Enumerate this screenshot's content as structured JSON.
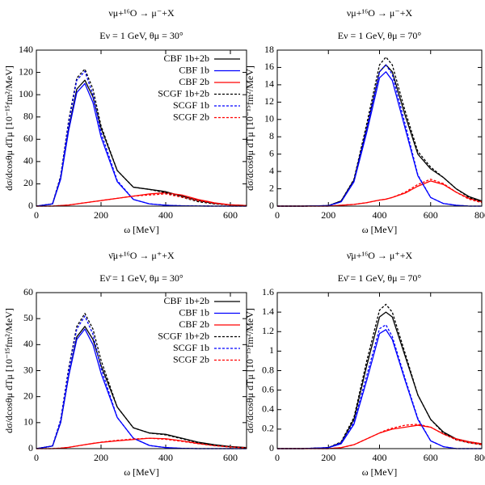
{
  "chart_data": [
    {
      "type": "line",
      "title": "νμ+¹⁶O → μ⁻+X",
      "subtitle": "Eν = 1 GeV, θμ = 30°",
      "xlabel": "ω [MeV]",
      "ylabel": "dσ/dcosθμ dTμ [10⁻¹⁵fm²/MeV]",
      "x": [
        0,
        50,
        75,
        100,
        125,
        150,
        175,
        200,
        250,
        300,
        350,
        400,
        450,
        500,
        550,
        600,
        650
      ],
      "xlim": [
        0,
        650
      ],
      "xticks": [
        0,
        200,
        400,
        600
      ],
      "ylim": [
        0,
        140
      ],
      "yticks": [
        0,
        20,
        40,
        60,
        80,
        100,
        120,
        140
      ],
      "legend": "upper right",
      "series": [
        {
          "name": "CBF 1b+2b",
          "color": "#000000",
          "dashed": false,
          "values": [
            0,
            2,
            25,
            70,
            105,
            113,
            98,
            70,
            32,
            17,
            15,
            13,
            9,
            5,
            2.5,
            1.2,
            0.5
          ]
        },
        {
          "name": "CBF 1b",
          "color": "#0000ff",
          "dashed": false,
          "values": [
            0,
            2,
            24,
            68,
            102,
            110,
            93,
            62,
            22,
            6,
            2,
            0.8,
            0.3,
            0.1,
            0,
            0,
            0
          ]
        },
        {
          "name": "CBF 2b",
          "color": "#ff0000",
          "dashed": false,
          "values": [
            0,
            0,
            0.5,
            1,
            2,
            3,
            4,
            5,
            7,
            9,
            11,
            12,
            10,
            6,
            3,
            1.2,
            0.5
          ]
        },
        {
          "name": "SCGF 1b+2b",
          "color": "#000000",
          "dashed": true,
          "values": [
            0,
            2,
            27,
            77,
            115,
            123,
            105,
            72,
            32,
            17,
            15,
            12,
            8,
            4,
            2,
            1,
            0.4
          ]
        },
        {
          "name": "SCGF 1b",
          "color": "#0000ff",
          "dashed": true,
          "values": [
            0,
            2,
            26,
            75,
            113,
            121,
            100,
            66,
            23,
            6,
            2,
            0.8,
            0.3,
            0.1,
            0,
            0,
            0
          ]
        },
        {
          "name": "SCGF 2b",
          "color": "#ff0000",
          "dashed": true,
          "values": [
            0,
            0,
            0.5,
            1,
            2,
            3,
            4,
            5,
            7,
            9,
            10,
            11,
            8,
            5,
            2.5,
            1,
            0.4
          ]
        }
      ]
    },
    {
      "type": "line",
      "title": "νμ+¹⁶O → μ⁻+X",
      "subtitle": "Eν = 1 GeV, θμ = 70°",
      "xlabel": "ω [MeV]",
      "ylabel": "dσ/dcosθμ dTμ [10⁻¹⁵fm²/MeV]",
      "x": [
        0,
        100,
        200,
        250,
        300,
        350,
        400,
        425,
        450,
        500,
        550,
        600,
        650,
        700,
        750,
        800
      ],
      "xlim": [
        0,
        800
      ],
      "xticks": [
        0,
        200,
        400,
        600,
        800
      ],
      "ylim": [
        0,
        18
      ],
      "yticks": [
        0,
        2,
        4,
        6,
        8,
        10,
        12,
        14,
        16,
        18
      ],
      "series": [
        {
          "name": "CBF 1b+2b",
          "color": "#000000",
          "dashed": false,
          "values": [
            0,
            0,
            0.05,
            0.6,
            3,
            9,
            15.5,
            16.3,
            15.5,
            10.5,
            6,
            4.3,
            3.3,
            2,
            1.1,
            0.6
          ]
        },
        {
          "name": "CBF 1b",
          "color": "#0000ff",
          "dashed": false,
          "values": [
            0,
            0,
            0.05,
            0.5,
            2.8,
            8.5,
            14.8,
            15.5,
            14.5,
            9,
            3.5,
            1,
            0.3,
            0.1,
            0,
            0
          ]
        },
        {
          "name": "CBF 2b",
          "color": "#ff0000",
          "dashed": false,
          "values": [
            0,
            0,
            0,
            0.1,
            0.2,
            0.4,
            0.7,
            0.8,
            1,
            1.5,
            2.3,
            2.9,
            2.5,
            1.6,
            0.9,
            0.5
          ]
        },
        {
          "name": "SCGF 1b+2b",
          "color": "#000000",
          "dashed": true,
          "values": [
            0,
            0,
            0.05,
            0.6,
            3.1,
            9.5,
            16.3,
            17.2,
            16.3,
            11,
            6.3,
            4.5,
            3.3,
            2,
            1,
            0.5
          ]
        },
        {
          "name": "SCGF 1b",
          "color": "#0000ff",
          "dashed": true,
          "values": [
            0,
            0,
            0.05,
            0.5,
            2.9,
            9,
            15.5,
            16.3,
            15.2,
            9.5,
            3.6,
            1,
            0.3,
            0.1,
            0,
            0
          ]
        },
        {
          "name": "SCGF 2b",
          "color": "#ff0000",
          "dashed": true,
          "values": [
            0,
            0,
            0,
            0.1,
            0.2,
            0.4,
            0.7,
            0.8,
            1,
            1.6,
            2.5,
            3.1,
            2.6,
            1.6,
            0.8,
            0.4
          ]
        }
      ]
    },
    {
      "type": "line",
      "title": "ν̄μ+¹⁶O → μ⁺+X",
      "subtitle": "Eν̄ = 1 GeV, θμ = 30°",
      "xlabel": "ω [MeV]",
      "ylabel": "dσ/dcosθμ dTμ [10⁻¹⁵fm²/MeV]",
      "x": [
        0,
        50,
        75,
        100,
        125,
        150,
        175,
        200,
        250,
        300,
        350,
        400,
        450,
        500,
        550,
        600,
        650
      ],
      "xlim": [
        0,
        650
      ],
      "xticks": [
        0,
        200,
        400,
        600
      ],
      "ylim": [
        0,
        60
      ],
      "yticks": [
        0,
        10,
        20,
        30,
        40,
        50,
        60
      ],
      "legend": "upper right",
      "series": [
        {
          "name": "CBF 1b+2b",
          "color": "#000000",
          "dashed": false,
          "values": [
            0,
            1,
            10,
            28,
            43,
            47,
            42,
            32,
            16,
            8,
            6,
            5.5,
            4,
            2.5,
            1.5,
            0.8,
            0.4
          ]
        },
        {
          "name": "CBF 1b",
          "color": "#0000ff",
          "dashed": false,
          "values": [
            0,
            1,
            10,
            28,
            42,
            46,
            40,
            29,
            12,
            4,
            1.2,
            0.4,
            0.1,
            0,
            0,
            0,
            0
          ]
        },
        {
          "name": "CBF 2b",
          "color": "#ff0000",
          "dashed": false,
          "values": [
            0,
            0,
            0.2,
            0.5,
            1,
            1.5,
            2,
            2.4,
            3,
            3.5,
            4,
            3.8,
            3,
            2,
            1.2,
            0.7,
            0.3
          ]
        },
        {
          "name": "SCGF 1b+2b",
          "color": "#000000",
          "dashed": true,
          "values": [
            0,
            1,
            11,
            31,
            47,
            52,
            46,
            34,
            16,
            8,
            6,
            5.3,
            3.8,
            2.3,
            1.3,
            0.7,
            0.3
          ]
        },
        {
          "name": "SCGF 1b",
          "color": "#0000ff",
          "dashed": true,
          "values": [
            0,
            1,
            11,
            30,
            46,
            51,
            44,
            31,
            12,
            4,
            1.2,
            0.4,
            0.1,
            0,
            0,
            0,
            0
          ]
        },
        {
          "name": "SCGF 2b",
          "color": "#ff0000",
          "dashed": true,
          "values": [
            0,
            0,
            0.2,
            0.5,
            1,
            1.5,
            2,
            2.5,
            3.2,
            3.7,
            4,
            3.6,
            2.8,
            1.9,
            1.1,
            0.6,
            0.3
          ]
        }
      ]
    },
    {
      "type": "line",
      "title": "ν̄μ+¹⁶O → μ⁺+X",
      "subtitle": "Eν̄ = 1 GeV, θμ = 70°",
      "xlabel": "ω [MeV]",
      "ylabel": "dσ/dcosθμ dTμ [10⁻¹⁵fm²/MeV]",
      "x": [
        0,
        100,
        200,
        250,
        300,
        350,
        400,
        425,
        450,
        500,
        550,
        600,
        650,
        700,
        750,
        800
      ],
      "xlim": [
        0,
        800
      ],
      "xticks": [
        0,
        200,
        400,
        600,
        800
      ],
      "ylim": [
        0,
        1.6
      ],
      "yticks": [
        0,
        0.2,
        0.4,
        0.6,
        0.8,
        1,
        1.2,
        1.4,
        1.6
      ],
      "series": [
        {
          "name": "CBF 1b+2b",
          "color": "#000000",
          "dashed": false,
          "values": [
            0,
            0,
            0.01,
            0.06,
            0.3,
            0.85,
            1.35,
            1.4,
            1.35,
            0.95,
            0.55,
            0.3,
            0.17,
            0.1,
            0.07,
            0.05
          ]
        },
        {
          "name": "CBF 1b",
          "color": "#0000ff",
          "dashed": false,
          "values": [
            0,
            0,
            0.01,
            0.05,
            0.25,
            0.7,
            1.18,
            1.22,
            1.12,
            0.7,
            0.3,
            0.08,
            0.02,
            0,
            0,
            0
          ]
        },
        {
          "name": "CBF 2b",
          "color": "#ff0000",
          "dashed": false,
          "values": [
            0,
            0,
            0,
            0.01,
            0.04,
            0.1,
            0.16,
            0.18,
            0.2,
            0.22,
            0.24,
            0.22,
            0.15,
            0.1,
            0.07,
            0.05
          ]
        },
        {
          "name": "SCGF 1b+2b",
          "color": "#000000",
          "dashed": true,
          "values": [
            0,
            0,
            0.01,
            0.07,
            0.32,
            0.9,
            1.42,
            1.48,
            1.4,
            0.98,
            0.55,
            0.3,
            0.16,
            0.09,
            0.06,
            0.04
          ]
        },
        {
          "name": "SCGF 1b",
          "color": "#0000ff",
          "dashed": true,
          "values": [
            0,
            0,
            0.01,
            0.06,
            0.27,
            0.75,
            1.23,
            1.27,
            1.15,
            0.72,
            0.31,
            0.08,
            0.02,
            0,
            0,
            0
          ]
        },
        {
          "name": "SCGF 2b",
          "color": "#ff0000",
          "dashed": true,
          "values": [
            0,
            0,
            0,
            0.01,
            0.04,
            0.1,
            0.16,
            0.19,
            0.21,
            0.24,
            0.25,
            0.22,
            0.15,
            0.09,
            0.06,
            0.04
          ]
        }
      ]
    }
  ]
}
